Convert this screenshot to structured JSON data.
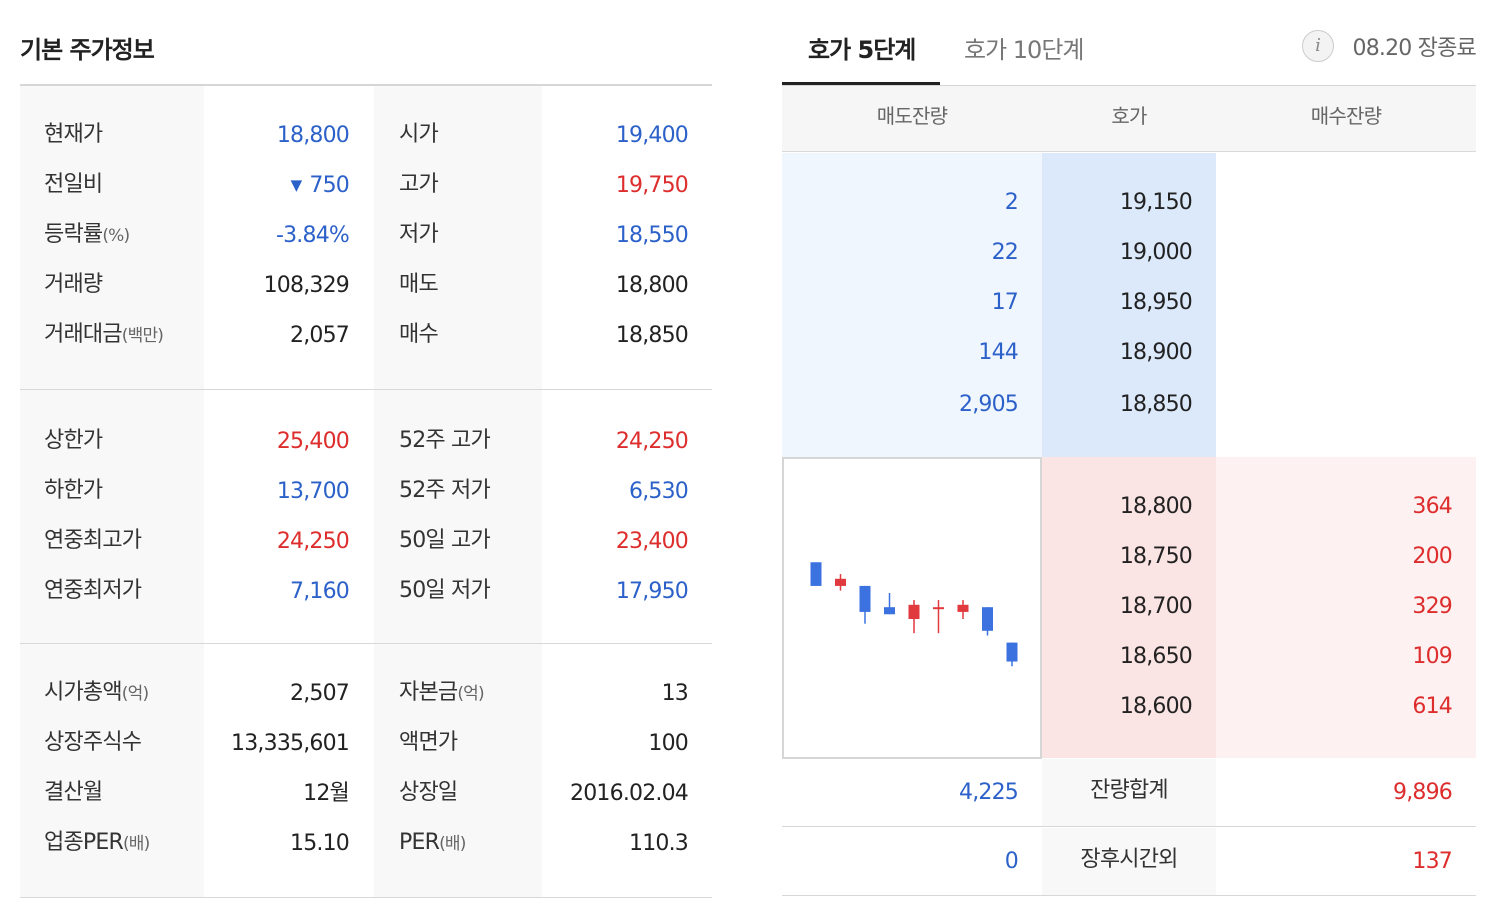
{
  "basic": {
    "title": "기본 주가정보",
    "sections": [
      {
        "rows": [
          {
            "label": "현재가",
            "label_unit": "",
            "value": "18,800",
            "value_color": "blue",
            "label2": "시가",
            "label2_unit": "",
            "value2": "19,400",
            "value2_color": "blue"
          },
          {
            "label": "전일비",
            "label_unit": "",
            "value": "750",
            "value_color": "blue",
            "indicator": "▼",
            "indicator_icon": "down-triangle-icon",
            "label2": "고가",
            "label2_unit": "",
            "value2": "19,750",
            "value2_color": "red"
          },
          {
            "label": "등락률",
            "label_unit": "(%)",
            "value": "-3.84%",
            "value_color": "blue",
            "label2": "저가",
            "label2_unit": "",
            "value2": "18,550",
            "value2_color": "blue"
          },
          {
            "label": "거래량",
            "label_unit": "",
            "value": "108,329",
            "value_color": "dark",
            "label2": "매도",
            "label2_unit": "",
            "value2": "18,800",
            "value2_color": "dark"
          },
          {
            "label": "거래대금",
            "label_unit": "(백만)",
            "value": "2,057",
            "value_color": "dark",
            "label2": "매수",
            "label2_unit": "",
            "value2": "18,850",
            "value2_color": "dark"
          }
        ]
      },
      {
        "rows": [
          {
            "label": "상한가",
            "label_unit": "",
            "value": "25,400",
            "value_color": "red",
            "label2": "52주 고가",
            "label2_unit": "",
            "value2": "24,250",
            "value2_color": "red"
          },
          {
            "label": "하한가",
            "label_unit": "",
            "value": "13,700",
            "value_color": "blue",
            "label2": "52주 저가",
            "label2_unit": "",
            "value2": "6,530",
            "value2_color": "blue"
          },
          {
            "label": "연중최고가",
            "label_unit": "",
            "value": "24,250",
            "value_color": "red",
            "label2": "50일 고가",
            "label2_unit": "",
            "value2": "23,400",
            "value2_color": "red"
          },
          {
            "label": "연중최저가",
            "label_unit": "",
            "value": "7,160",
            "value_color": "blue",
            "label2": "50일 저가",
            "label2_unit": "",
            "value2": "17,950",
            "value2_color": "blue"
          }
        ]
      },
      {
        "rows": [
          {
            "label": "시가총액",
            "label_unit": "(억)",
            "value": "2,507",
            "value_color": "dark",
            "label2": "자본금",
            "label2_unit": "(억)",
            "value2": "13",
            "value2_color": "dark"
          },
          {
            "label": "상장주식수",
            "label_unit": "",
            "value": "13,335,601",
            "value_color": "dark",
            "label2": "액면가",
            "label2_unit": "",
            "value2": "100",
            "value2_color": "dark"
          },
          {
            "label": "결산월",
            "label_unit": "",
            "value": "12월",
            "value_color": "dark",
            "label2": "상장일",
            "label2_unit": "",
            "value2": "2016.02.04",
            "value2_color": "dark"
          },
          {
            "label": "업종PER",
            "label_unit": "(배)",
            "value": "15.10",
            "value_color": "dark",
            "label2": "PER",
            "label2_unit": "(배)",
            "value2": "110.3",
            "value2_color": "dark"
          }
        ]
      }
    ]
  },
  "orderbook": {
    "tabs": [
      {
        "label": "호가 5단계",
        "active": true
      },
      {
        "label": "호가 10단계",
        "active": false
      }
    ],
    "info_icon": "info-icon",
    "info_glyph": "i",
    "status": "08.20 장종료",
    "headers": {
      "sell_qty": "매도잔량",
      "price": "호가",
      "buy_qty": "매수잔량"
    },
    "asks": [
      {
        "qty": "2",
        "price": "19,150"
      },
      {
        "qty": "22",
        "price": "19,000"
      },
      {
        "qty": "17",
        "price": "18,950"
      },
      {
        "qty": "144",
        "price": "18,900"
      },
      {
        "qty": "2,905",
        "price": "18,850"
      }
    ],
    "bids": [
      {
        "price": "18,800",
        "qty": "364"
      },
      {
        "price": "18,750",
        "qty": "200"
      },
      {
        "price": "18,700",
        "qty": "329"
      },
      {
        "price": "18,650",
        "qty": "109"
      },
      {
        "price": "18,600",
        "qty": "614"
      }
    ],
    "totals": {
      "label": "잔량합계",
      "sell": "4,225",
      "buy": "9,896"
    },
    "after_hours": {
      "label": "장후시간외",
      "sell": "0",
      "buy": "137"
    },
    "mini_chart": {
      "up_color": "#e0393e",
      "down_color": "#3b72e0",
      "candles": [
        {
          "open": 19545,
          "high": 19545,
          "low": 19090,
          "close": 19090,
          "dir": "down"
        },
        {
          "open": 19090,
          "high": 19318,
          "low": 19000,
          "close": 19227,
          "dir": "up"
        },
        {
          "open": 19090,
          "high": 19090,
          "low": 18363,
          "close": 18590,
          "dir": "down"
        },
        {
          "open": 18681,
          "high": 18954,
          "low": 18545,
          "close": 18545,
          "dir": "down"
        },
        {
          "open": 18454,
          "high": 18818,
          "low": 18181,
          "close": 18727,
          "dir": "up"
        },
        {
          "open": 18681,
          "high": 18818,
          "low": 18181,
          "close": 18681,
          "dir": "up"
        },
        {
          "open": 18590,
          "high": 18818,
          "low": 18454,
          "close": 18727,
          "dir": "up"
        },
        {
          "open": 18681,
          "high": 18681,
          "low": 18136,
          "close": 18227,
          "dir": "down"
        },
        {
          "open": 18000,
          "high": 18000,
          "low": 17545,
          "close": 17636,
          "dir": "down"
        }
      ]
    }
  }
}
